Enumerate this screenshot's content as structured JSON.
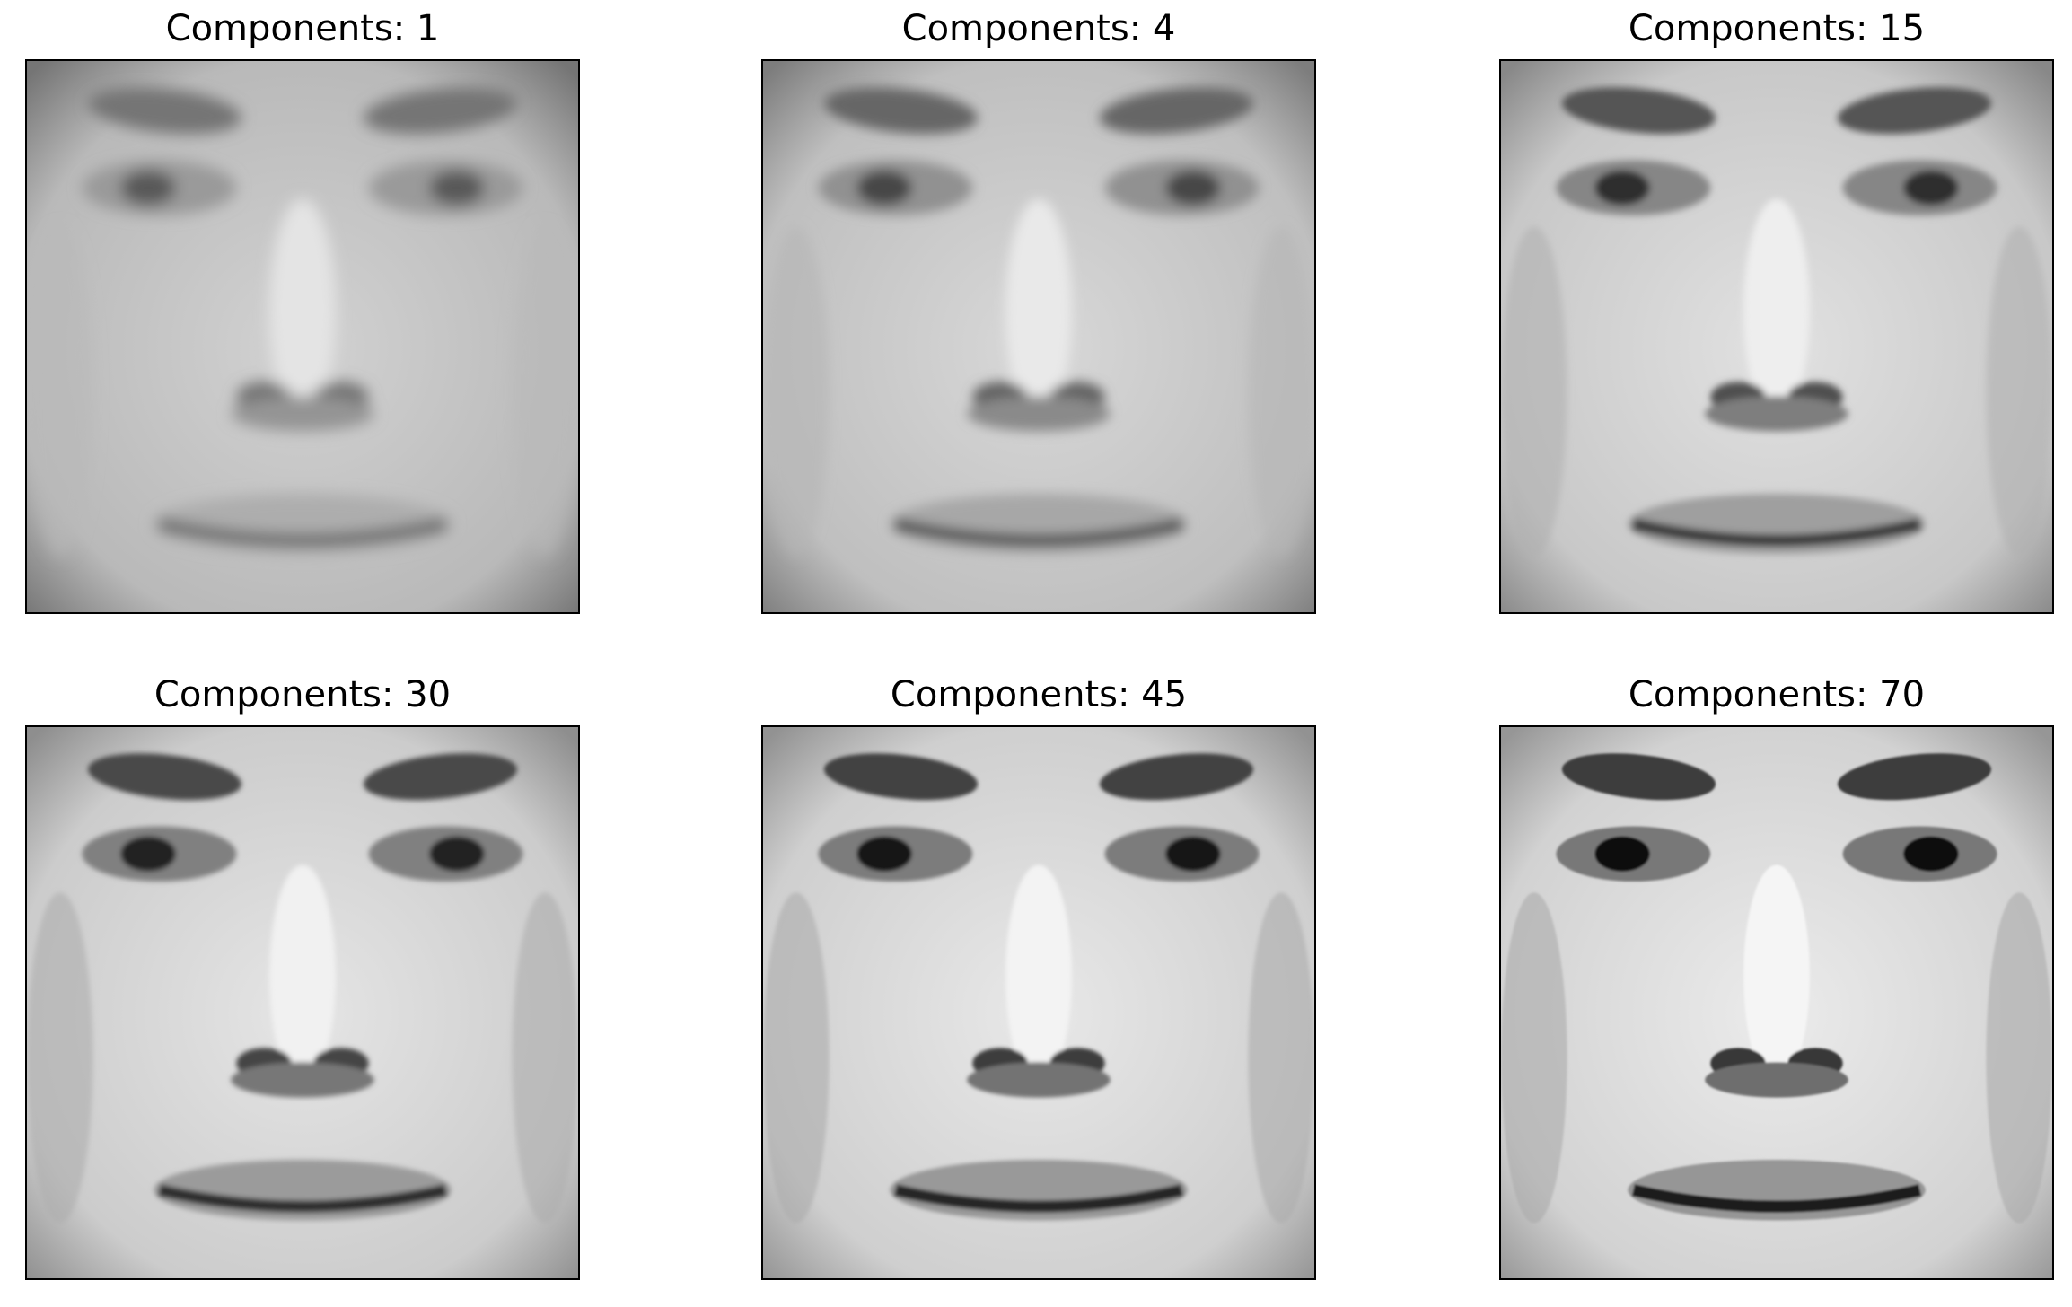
{
  "figure": {
    "panels": [
      {
        "title": "Components: 1",
        "components": 1
      },
      {
        "title": "Components: 4",
        "components": 4
      },
      {
        "title": "Components: 15",
        "components": 15
      },
      {
        "title": "Components: 30",
        "components": 30
      },
      {
        "title": "Components: 45",
        "components": 45
      },
      {
        "title": "Components: 70",
        "components": 70
      }
    ]
  }
}
